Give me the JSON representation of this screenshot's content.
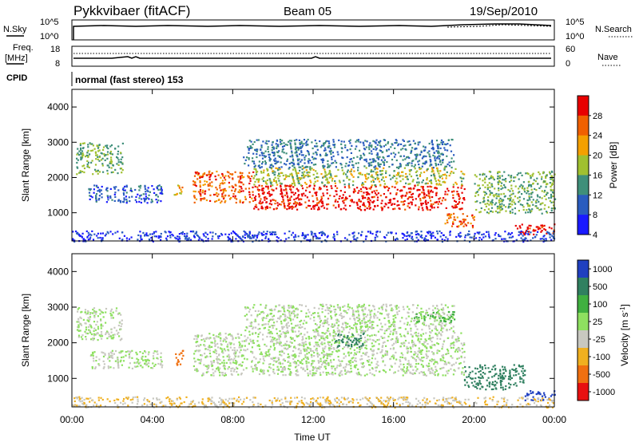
{
  "header": {
    "title": "Pykkvibaer (fitACF)",
    "beam": "Beam 05",
    "date": "19/Sep/2010"
  },
  "top_panels": {
    "nsky": {
      "label": "N.Sky",
      "ticks_left": [
        "10^5",
        "10^0"
      ]
    },
    "nsearch": {
      "label": "N.Search",
      "ticks_right": [
        "10^5",
        "10^0"
      ]
    },
    "freq": {
      "label_line1": "Freq.",
      "label_line2": "[MHz]",
      "ticks_left": [
        "18",
        "8"
      ]
    },
    "nave": {
      "label": "Nave",
      "ticks_right": [
        "60",
        "0"
      ]
    },
    "cpid": {
      "label": "CPID",
      "text": "normal (fast stereo) 153"
    }
  },
  "axes": {
    "ylabel": "Slant Range [km]",
    "yticks": [
      "1000",
      "2000",
      "3000",
      "4000"
    ],
    "xlabel": "Time UT",
    "xticks": [
      "00:00",
      "04:00",
      "08:00",
      "12:00",
      "16:00",
      "20:00",
      "00:00"
    ]
  },
  "colorbars": {
    "power": {
      "label": "Power [dB]",
      "ticks": [
        "4",
        "8",
        "12",
        "16",
        "20",
        "24",
        "28"
      ]
    },
    "velocity": {
      "label": "Velocity [m s",
      "label_sup": "-1",
      "label_end": "]",
      "ticks": [
        "1000",
        "500",
        "100",
        "25",
        "-25",
        "-100",
        "-500",
        "-1000"
      ]
    }
  },
  "chart_data": [
    {
      "type": "heatmap",
      "name_in_figure": "Power [dB]",
      "x_range_hours": [
        0,
        24
      ],
      "y_range_km": [
        200,
        4500
      ],
      "color_levels": [
        4,
        8,
        12,
        16,
        20,
        24,
        28
      ],
      "colors": [
        "#1a1aff",
        "#2a5cbf",
        "#3f8f7a",
        "#a0c030",
        "#f4a000",
        "#f06000",
        "#e80000"
      ],
      "regions": [
        {
          "t": [
            0.2,
            2.5
          ],
          "r": [
            2100,
            3000
          ],
          "power": 14
        },
        {
          "t": [
            0.8,
            4.5
          ],
          "r": [
            1300,
            1800
          ],
          "power": 8
        },
        {
          "t": [
            5.0,
            5.5
          ],
          "r": [
            1500,
            1800
          ],
          "power": 20
        },
        {
          "t": [
            6.0,
            9.0
          ],
          "r": [
            1300,
            2200
          ],
          "power": 24
        },
        {
          "t": [
            9.0,
            19.5
          ],
          "r": [
            1100,
            1800
          ],
          "power": 28
        },
        {
          "t": [
            9.0,
            19.5
          ],
          "r": [
            1800,
            2300
          ],
          "power": 16
        },
        {
          "t": [
            8.5,
            19.0
          ],
          "r": [
            2300,
            3100
          ],
          "power": 10
        },
        {
          "t": [
            18.5,
            20.0
          ],
          "r": [
            600,
            1000
          ],
          "power": 24
        },
        {
          "t": [
            20.0,
            24.0
          ],
          "r": [
            1000,
            2200
          ],
          "power": 14
        },
        {
          "t": [
            22.0,
            24.0
          ],
          "r": [
            400,
            700
          ],
          "power": 28
        },
        {
          "t": [
            0.0,
            24.0
          ],
          "r": [
            200,
            500
          ],
          "power": 6
        }
      ]
    },
    {
      "type": "heatmap",
      "name_in_figure": "Velocity [m s-1]",
      "x_range_hours": [
        0,
        24
      ],
      "y_range_km": [
        200,
        4500
      ],
      "color_levels": [
        1000,
        500,
        100,
        25,
        -25,
        -100,
        -500,
        -1000
      ],
      "colors": [
        "#2040c0",
        "#308060",
        "#40b040",
        "#8ee060",
        "#c8c8c0",
        "#f0b020",
        "#f07010",
        "#e81010"
      ],
      "regions": [
        {
          "t": [
            0.2,
            2.5
          ],
          "r": [
            2100,
            3000
          ],
          "velocity": 0
        },
        {
          "t": [
            0.8,
            4.5
          ],
          "r": [
            1300,
            1800
          ],
          "velocity": 0
        },
        {
          "t": [
            5.0,
            5.5
          ],
          "r": [
            1400,
            1800
          ],
          "velocity": -400
        },
        {
          "t": [
            6.0,
            19.5
          ],
          "r": [
            1100,
            2300
          ],
          "velocity": 0
        },
        {
          "t": [
            8.5,
            19.0
          ],
          "r": [
            2300,
            3100
          ],
          "velocity": 0
        },
        {
          "t": [
            13.0,
            14.5
          ],
          "r": [
            1900,
            2300
          ],
          "velocity": 400
        },
        {
          "t": [
            17.0,
            19.0
          ],
          "r": [
            2600,
            2900
          ],
          "velocity": 80
        },
        {
          "t": [
            19.5,
            22.5
          ],
          "r": [
            700,
            1400
          ],
          "velocity": 500
        },
        {
          "t": [
            22.5,
            24.0
          ],
          "r": [
            400,
            700
          ],
          "velocity": 800
        },
        {
          "t": [
            0.0,
            24.0
          ],
          "r": [
            200,
            500
          ],
          "velocity": -60
        }
      ]
    }
  ]
}
